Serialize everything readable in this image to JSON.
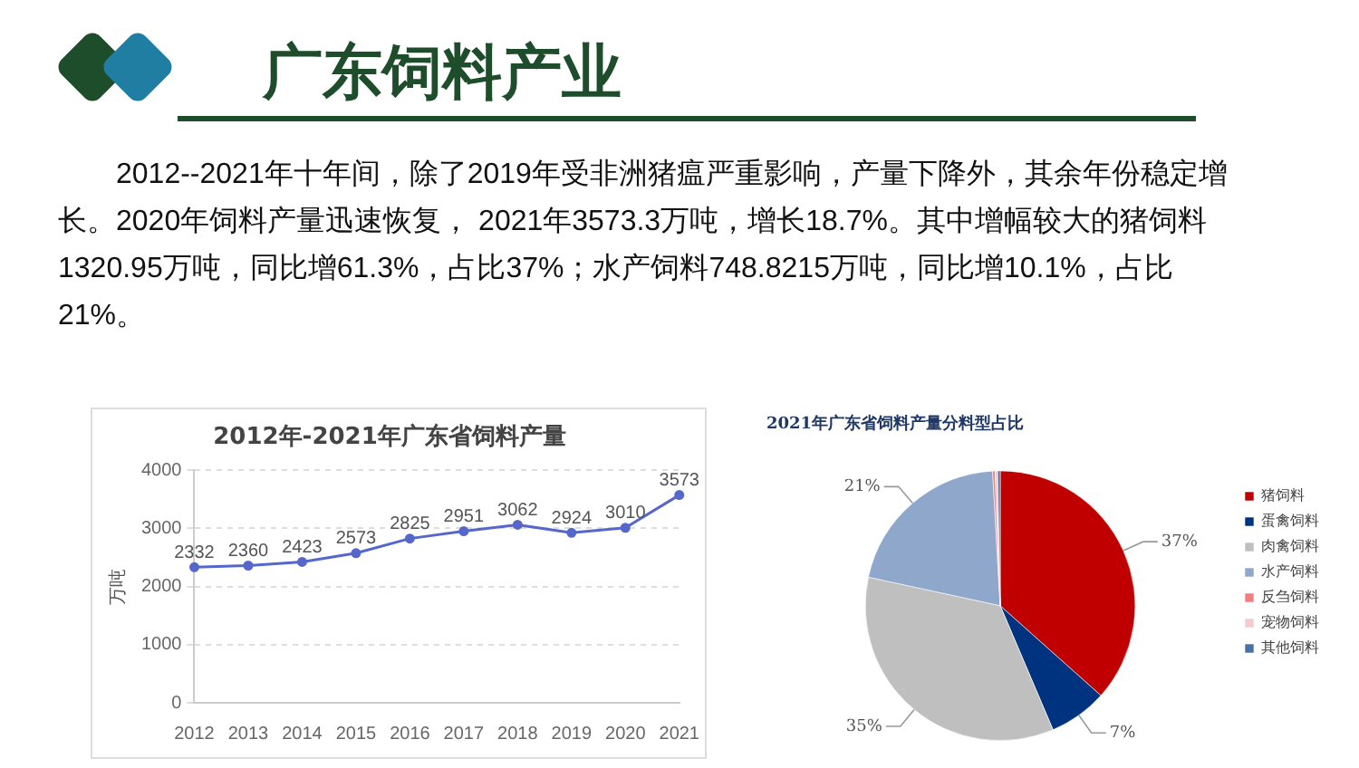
{
  "chart_data": [
    {
      "type": "other",
      "title": "广东饲料产业",
      "annotations": [
        "2012--2021年十年间，除了2019年受非洲猪瘟严重影响，产量下降外，其余年份稳定增长。2020年饲料产量迅速恢复， 2021年3573.3万吨，增长18.7%。其中增幅较大的猪饲料1320.95万吨，同比增61.3%，占比37%；水产饲料748.8215万吨，同比增10.1%，占比21%。"
      ]
    },
    {
      "type": "line",
      "title": "2012年-2021年广东省饲料产量",
      "ylabel": "万吨",
      "categories": [
        "2012",
        "2013",
        "2014",
        "2015",
        "2016",
        "2017",
        "2018",
        "2019",
        "2020",
        "2021"
      ],
      "series": [
        {
          "color": "#5667cc",
          "values": [
            2332,
            2360,
            2423,
            2573,
            2825,
            2951,
            3062,
            2924,
            3010,
            3573
          ]
        }
      ],
      "ylim": [
        0,
        4000
      ],
      "yticks": [
        0,
        1000,
        2000,
        3000,
        4000
      ],
      "grid": "y",
      "data_labels": true,
      "marker": "circle",
      "legend": false
    },
    {
      "type": "pie",
      "title": "2021年广东省饲料产量分料型占比",
      "categories": [
        "猪饲料",
        "蛋禽饲料",
        "肉禽饲料",
        "水产饲料",
        "反刍饲料",
        "宠物饲料",
        "其他饲料"
      ],
      "values": [
        36.6,
        7,
        34.8,
        20.7,
        0.3,
        0.3,
        0.3
      ],
      "value_labels": [
        "37%",
        "7%",
        "35%",
        "21%",
        null,
        null,
        null
      ],
      "colors": [
        "#c00000",
        "#00337f",
        "#bfbfbf",
        "#8fa7cb",
        "#f08080",
        "#f4cccc",
        "#4a70a8"
      ],
      "legend": "right"
    }
  ]
}
